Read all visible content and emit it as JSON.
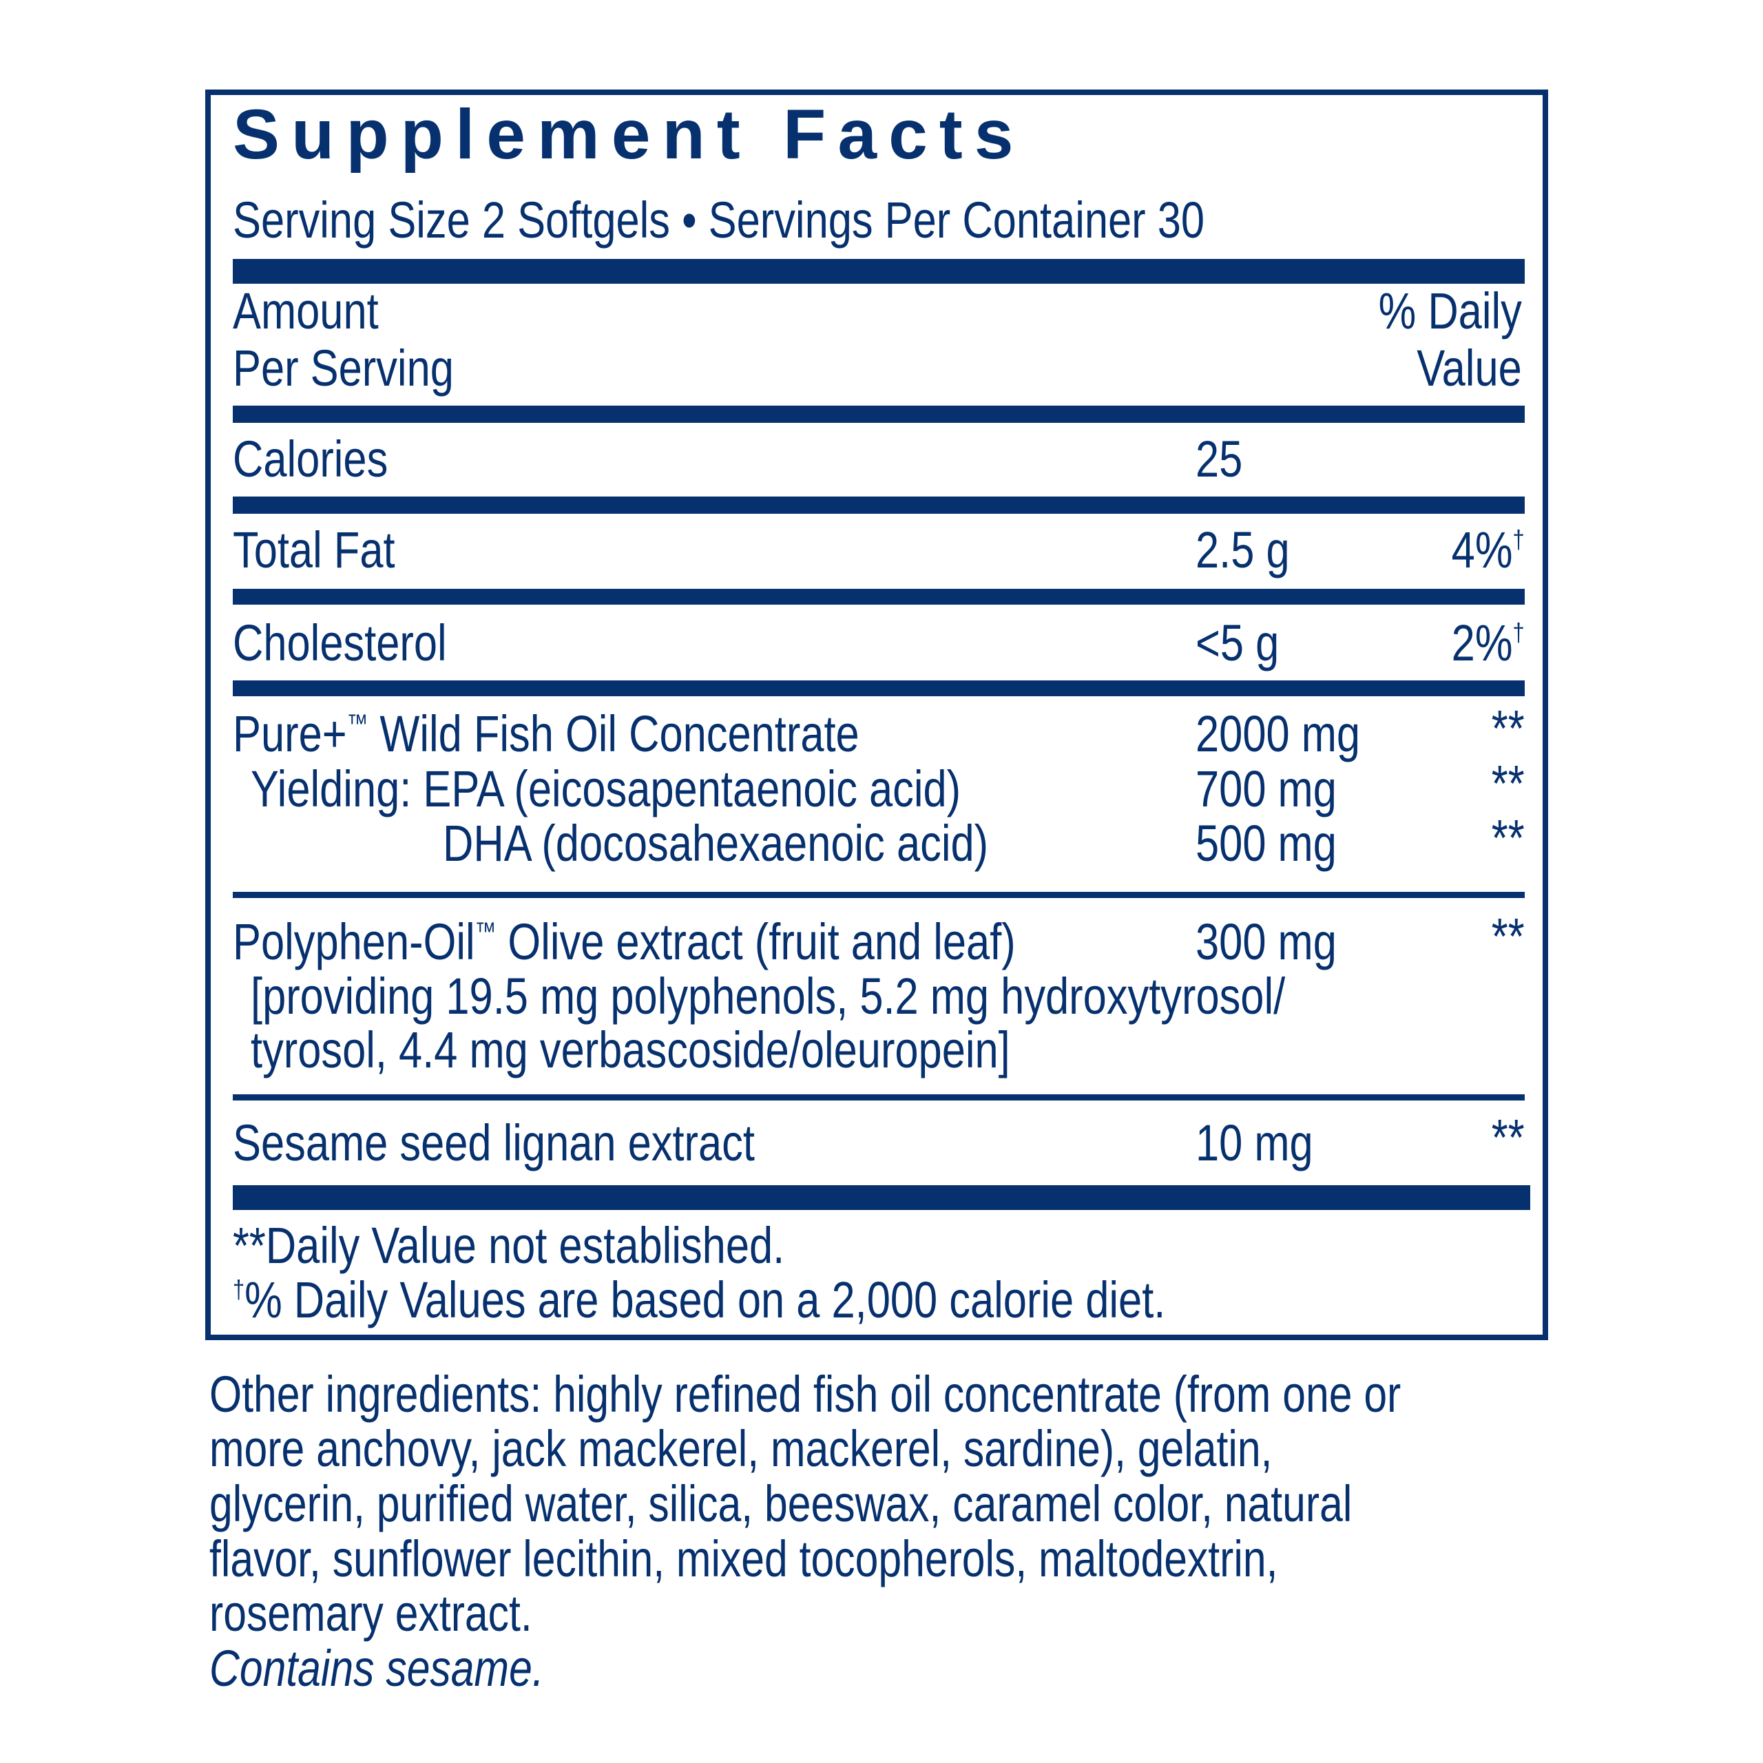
{
  "title": "Supplement Facts",
  "serving": "Serving Size 2 Softgels • Servings Per Container 30",
  "header": {
    "amount_line1": "Amount",
    "amount_line2": "Per Serving",
    "dv_line1": "% Daily",
    "dv_line2": "Value"
  },
  "rows": [
    {
      "name": "Calories",
      "amount": "25",
      "dv": ""
    },
    {
      "name": "Total Fat",
      "amount": "2.5 g",
      "dv": "4%",
      "dv_mark": "†"
    },
    {
      "name": "Cholesterol",
      "amount": "<5 g",
      "dv": "2%",
      "dv_mark": "†"
    },
    {
      "name_pre": "Pure+",
      "tm": "™",
      "name_post": " Wild Fish Oil Concentrate",
      "amount": "2000 mg",
      "dv": "**"
    },
    {
      "name": "Yielding: EPA (eicosapentaenoic acid)",
      "amount": "700 mg",
      "dv": "**"
    },
    {
      "name": "DHA (docosahexaenoic acid)",
      "amount": "500 mg",
      "dv": "**"
    },
    {
      "name_pre": "Polyphen-Oil",
      "tm": "™",
      "name_post": " Olive extract (fruit and leaf)",
      "amount": "300 mg",
      "dv": "**",
      "detail_line1": "[providing 19.5 mg polyphenols, 5.2 mg hydroxytyrosol/",
      "detail_line2": "tyrosol, 4.4 mg verbascoside/oleuropein]"
    },
    {
      "name": "Sesame seed lignan extract",
      "amount": "10 mg",
      "dv": "**"
    }
  ],
  "footnotes": {
    "dv_not_established": "**Daily Value not established.",
    "dagger": "†",
    "dv_basis": "% Daily Values are based on a 2,000 calorie diet."
  },
  "other_ingredients": [
    "Other ingredients: highly refined fish oil concentrate (from one or",
    "more anchovy, jack mackerel, mackerel, sardine), gelatin,",
    "glycerin, purified water, silica, beeswax, caramel color, natural",
    "flavor, sunflower lecithin, mixed tocopherols, maltodextrin,",
    "rosemary extract."
  ],
  "allergen": "Contains sesame.",
  "colors": {
    "ink": "#06306e",
    "background": "#ffffff"
  }
}
